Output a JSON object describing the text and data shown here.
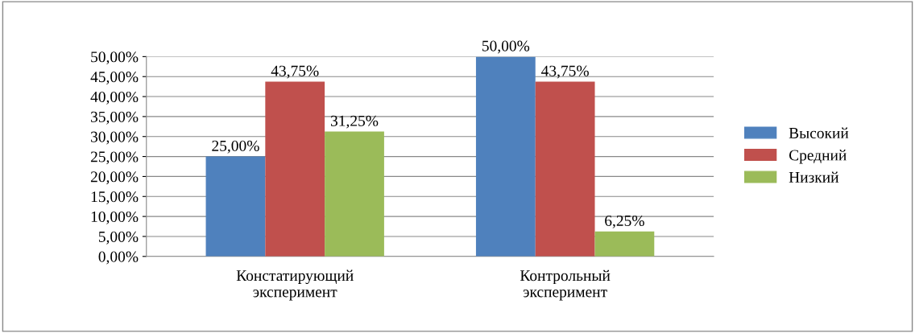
{
  "chart_data": {
    "type": "bar",
    "categories": [
      "Констатирующий\nэксперимент",
      "Контрольный\nэксперимент"
    ],
    "series": [
      {
        "name": "Высокий",
        "color": "#4f81bd",
        "values": [
          25,
          50
        ],
        "value_labels": [
          "25,00%",
          "50,00%"
        ]
      },
      {
        "name": "Средний",
        "color": "#c0504d",
        "values": [
          43.75,
          43.75
        ],
        "value_labels": [
          "43,75%",
          "43,75%"
        ]
      },
      {
        "name": "Низкий",
        "color": "#9bbb59",
        "values": [
          31.25,
          6.25
        ],
        "value_labels": [
          "31,25%",
          "6,25%"
        ]
      }
    ],
    "ylim": [
      0,
      50
    ],
    "yticks": [
      {
        "value": 0,
        "label": "0,00%"
      },
      {
        "value": 5,
        "label": "5,00%"
      },
      {
        "value": 10,
        "label": "10,00%"
      },
      {
        "value": 15,
        "label": "15,00%"
      },
      {
        "value": 20,
        "label": "20,00%"
      },
      {
        "value": 25,
        "label": "25,00%"
      },
      {
        "value": 30,
        "label": "30,00%"
      },
      {
        "value": 35,
        "label": "35,00%"
      },
      {
        "value": 40,
        "label": "40,00%"
      },
      {
        "value": 45,
        "label": "45,00%"
      },
      {
        "value": 50,
        "label": "50,00%"
      }
    ],
    "grid": "y",
    "legend": "right"
  }
}
